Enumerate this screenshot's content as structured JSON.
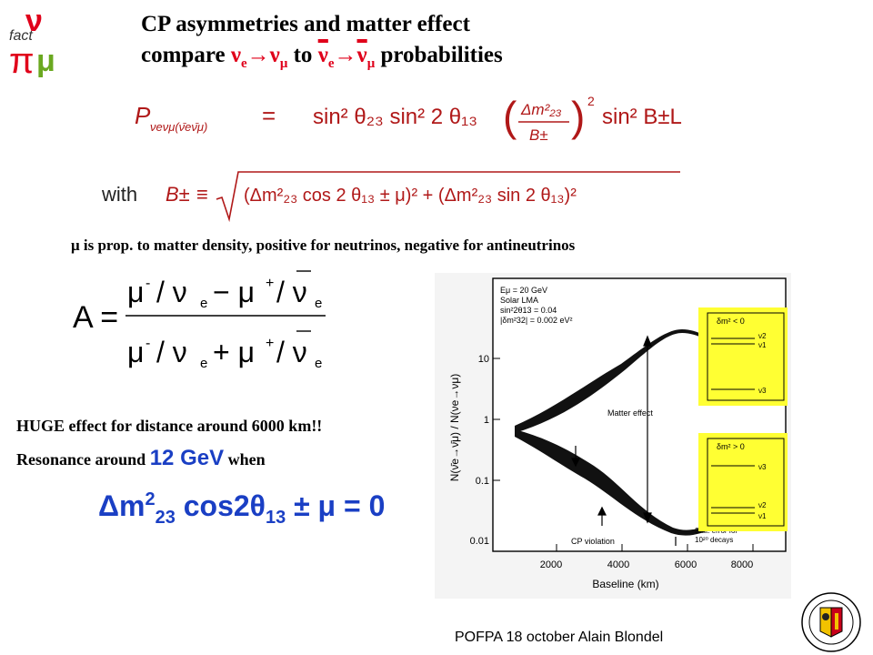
{
  "title": {
    "line1": "CP   asymmetries and matter effect",
    "line2_prefix": "compare ",
    "nu": "ν",
    "e": "e",
    "arrow": "→",
    "mu_sub": "μ",
    "line2_to": "  to  ",
    "line2_suffix": " probabilities"
  },
  "mu_note": "μ  is prop. to matter density, positive for neutrinos, negative for antineutrinos",
  "equations": {
    "with_label": "with",
    "prob_rhs": "sin² θ₂₃ sin² 2 θ₁₃"
  },
  "asymmetry": {
    "lhs": "A ="
  },
  "huge_text": "HUGE effect for distance around 6000 km!!",
  "resonance": {
    "prefix": "Resonance around ",
    "energy": "12 GeV",
    "suffix": " when"
  },
  "condition": {
    "part1": "Δm",
    "sup": "2",
    "sub1": "23",
    "part2": " cos2θ",
    "sub2": "13",
    "part3": " ± μ = 0"
  },
  "plot": {
    "legend_lines": [
      "Eμ = 20 GeV",
      "Solar LMA",
      "sin²2θ13 = 0.04",
      "|δm²32| = 0.002 eV²"
    ],
    "matter_effect": "Matter effect",
    "cp_violation": "CP violation",
    "stat_error_1": "Stat. error for",
    "stat_error_2": "10²⁰ decays",
    "xlabel": "Baseline",
    "xlabel_unit": "(km)",
    "ylabel": "N(ν̄e→ν̄μ) / N(νe→νμ)",
    "x_ticks": [
      "2000",
      "4000",
      "6000",
      "8000"
    ],
    "y_ticks": [
      "10",
      "1",
      "0.1",
      "0.01"
    ],
    "box_top": "δm² < 0",
    "box_bottom": "δm² > 0",
    "box_labels_top": [
      "ν2",
      "ν1",
      "ν3"
    ],
    "box_labels_bottom": [
      "ν3",
      "ν2",
      "ν1"
    ]
  },
  "footer": "POFPA 18 october  Alain Blondel",
  "colors": {
    "red": "#e0001a",
    "blue": "#1a3fc4",
    "box_yellow": "#ffff33"
  }
}
